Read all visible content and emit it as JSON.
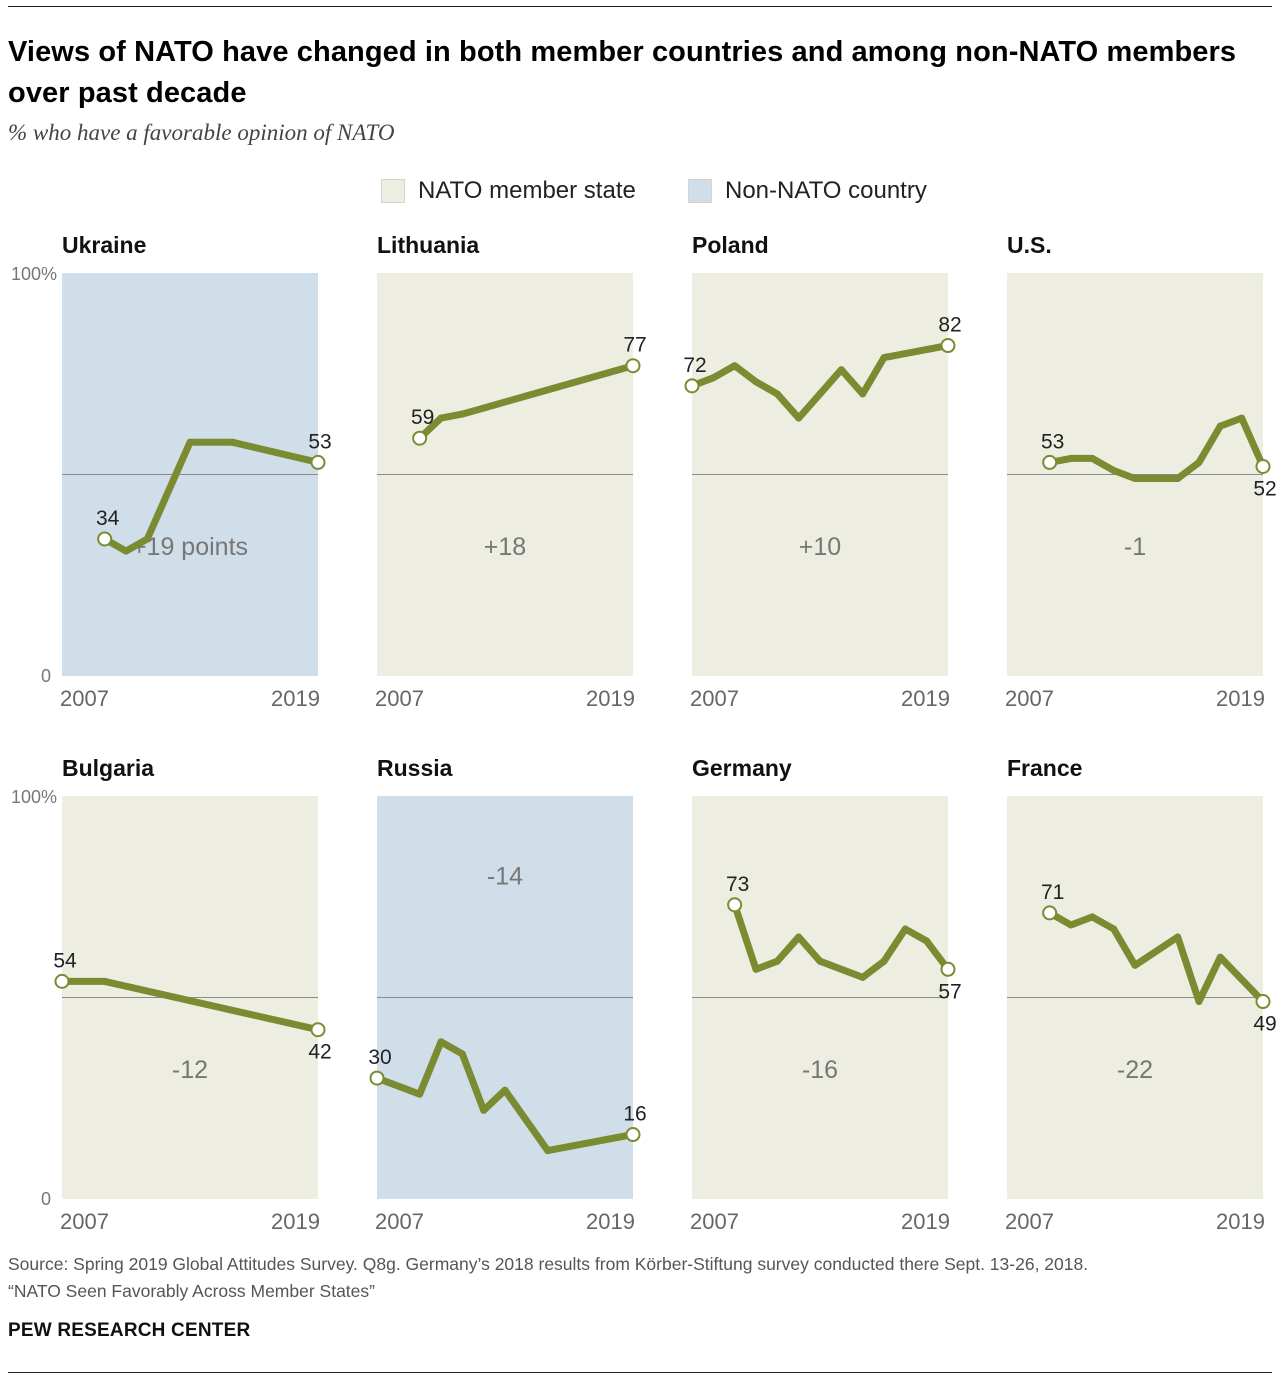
{
  "title": "Views of NATO have changed in both member countries and among non-NATO members over past decade",
  "subtitle": "% who have a favorable opinion of NATO",
  "legend": [
    {
      "label": "NATO member state",
      "color": "#edede2"
    },
    {
      "label": "Non-NATO country",
      "color": "#cfdee8"
    }
  ],
  "colors": {
    "line": "#7b8b31",
    "marker_fill": "#ffffff",
    "member_bg": "#edede2",
    "non_member_bg": "#cfdee8",
    "midline": "#8a8a8a",
    "delta_text": "#777777"
  },
  "chart_data": [
    {
      "type": "line",
      "title": "Ukraine",
      "member": false,
      "x": [
        2009,
        2010,
        2011,
        2013,
        2015,
        2019
      ],
      "values": [
        34,
        31,
        34,
        58,
        58,
        53
      ],
      "start_label": "34",
      "end_label": "53",
      "delta": "+19 points",
      "ylim": [
        0,
        100
      ],
      "ytick_top": "100%",
      "ytick_bottom": "0",
      "xtick_start": "2007",
      "xtick_end": "2019",
      "grid": "50% reference line"
    },
    {
      "type": "line",
      "title": "Lithuania",
      "member": true,
      "x": [
        2009,
        2010,
        2011,
        2019
      ],
      "values": [
        59,
        64,
        65,
        77
      ],
      "start_label": "59",
      "end_label": "77",
      "delta": "+18",
      "ylim": [
        0,
        100
      ],
      "xtick_start": "2007",
      "xtick_end": "2019"
    },
    {
      "type": "line",
      "title": "Poland",
      "member": true,
      "x": [
        2007,
        2008,
        2009,
        2010,
        2011,
        2012,
        2013,
        2014,
        2015,
        2016,
        2017,
        2019
      ],
      "values": [
        72,
        74,
        77,
        73,
        70,
        64,
        70,
        76,
        70,
        79,
        80,
        82
      ],
      "start_label": "72",
      "end_label": "82",
      "delta": "+10",
      "ylim": [
        0,
        100
      ],
      "xtick_start": "2007",
      "xtick_end": "2019"
    },
    {
      "type": "line",
      "title": "U.S.",
      "member": true,
      "x": [
        2009,
        2010,
        2011,
        2012,
        2013,
        2014,
        2015,
        2016,
        2017,
        2018,
        2019
      ],
      "values": [
        53,
        54,
        54,
        51,
        49,
        49,
        49,
        53,
        62,
        64,
        52
      ],
      "start_label": "53",
      "end_label": "52",
      "delta": "-1",
      "ylim": [
        0,
        100
      ],
      "xtick_start": "2007",
      "xtick_end": "2019"
    },
    {
      "type": "line",
      "title": "Bulgaria",
      "member": true,
      "x": [
        2007,
        2009,
        2019
      ],
      "values": [
        54,
        54,
        42
      ],
      "start_label": "54",
      "end_label": "42",
      "delta": "-12",
      "ylim": [
        0,
        100
      ],
      "xtick_start": "2007",
      "xtick_end": "2019"
    },
    {
      "type": "line",
      "title": "Russia",
      "member": false,
      "x": [
        2007,
        2009,
        2010,
        2011,
        2012,
        2013,
        2015,
        2019
      ],
      "values": [
        30,
        26,
        39,
        36,
        22,
        27,
        12,
        16
      ],
      "start_label": "30",
      "end_label": "16",
      "delta": "-14",
      "ylim": [
        0,
        100
      ],
      "xtick_start": "2007",
      "xtick_end": "2019"
    },
    {
      "type": "line",
      "title": "Germany",
      "member": true,
      "x": [
        2009,
        2010,
        2011,
        2012,
        2013,
        2015,
        2016,
        2017,
        2018,
        2019
      ],
      "values": [
        73,
        57,
        59,
        65,
        59,
        55,
        59,
        67,
        64,
        57
      ],
      "start_label": "73",
      "end_label": "57",
      "delta": "-16",
      "ylim": [
        0,
        100
      ],
      "xtick_start": "2007",
      "xtick_end": "2019"
    },
    {
      "type": "line",
      "title": "France",
      "member": true,
      "x": [
        2009,
        2010,
        2011,
        2012,
        2013,
        2015,
        2016,
        2017,
        2019
      ],
      "values": [
        71,
        68,
        70,
        67,
        58,
        65,
        49,
        60,
        49
      ],
      "start_label": "71",
      "end_label": "49",
      "delta": "-22",
      "ylim": [
        0,
        100
      ],
      "xtick_start": "2007",
      "xtick_end": "2019"
    }
  ],
  "footer": {
    "source_line1": "Source: Spring 2019 Global Attitudes Survey. Q8g. Germany’s 2018 results from Körber-Stiftung survey conducted there Sept. 13-26, 2018.",
    "source_line2": "“NATO Seen Favorably Across Member States”",
    "brand": "PEW RESEARCH CENTER"
  }
}
